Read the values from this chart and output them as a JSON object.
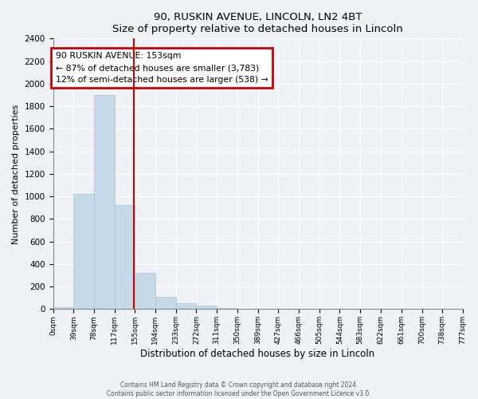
{
  "title": "90, RUSKIN AVENUE, LINCOLN, LN2 4BT",
  "subtitle": "Size of property relative to detached houses in Lincoln",
  "xlabel": "Distribution of detached houses by size in Lincoln",
  "ylabel": "Number of detached properties",
  "bar_color": "#c5d9e8",
  "bar_edge_color": "#a8c0d4",
  "bin_edges": [
    0,
    39,
    78,
    117,
    155,
    194,
    233,
    272,
    311,
    350,
    389,
    427,
    466,
    505,
    544,
    583,
    622,
    661,
    700,
    738,
    777
  ],
  "bin_labels": [
    "0sqm",
    "39sqm",
    "78sqm",
    "117sqm",
    "155sqm",
    "194sqm",
    "233sqm",
    "272sqm",
    "311sqm",
    "350sqm",
    "389sqm",
    "427sqm",
    "466sqm",
    "505sqm",
    "544sqm",
    "583sqm",
    "622sqm",
    "661sqm",
    "700sqm",
    "738sqm",
    "777sqm"
  ],
  "bar_heights": [
    20,
    1020,
    1900,
    920,
    320,
    110,
    55,
    30,
    8,
    0,
    0,
    0,
    0,
    0,
    0,
    0,
    0,
    0,
    0,
    0
  ],
  "ylim": [
    0,
    2400
  ],
  "yticks": [
    0,
    200,
    400,
    600,
    800,
    1000,
    1200,
    1400,
    1600,
    1800,
    2000,
    2200,
    2400
  ],
  "property_line_x": 153,
  "property_line_color": "#cc0000",
  "annotation_title": "90 RUSKIN AVENUE: 153sqm",
  "annotation_line1": "← 87% of detached houses are smaller (3,783)",
  "annotation_line2": "12% of semi-detached houses are larger (538) →",
  "annotation_box_color": "#cc0000",
  "footer_line1": "Contains HM Land Registry data © Crown copyright and database right 2024.",
  "footer_line2": "Contains public sector information licensed under the Open Government Licence v3.0.",
  "background_color": "#eef2f7",
  "grid_color": "#ffffff"
}
